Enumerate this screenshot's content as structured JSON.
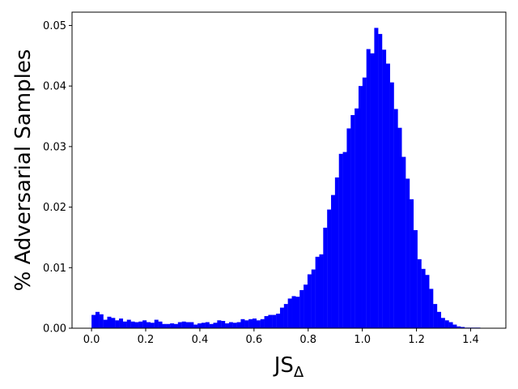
{
  "chart_data": {
    "type": "histogram",
    "xlabel": "JS",
    "xlabel_subscript": "Δ",
    "ylabel": "% Adversarial Samples",
    "xlim": [
      -0.072,
      1.53
    ],
    "ylim": [
      0,
      0.0522
    ],
    "xticks": [
      0.0,
      0.2,
      0.4,
      0.6,
      0.8,
      1.0,
      1.2,
      1.4
    ],
    "xtick_labels": [
      "0.0",
      "0.2",
      "0.4",
      "0.6",
      "0.8",
      "1.0",
      "1.2",
      "1.4"
    ],
    "yticks": [
      0.0,
      0.01,
      0.02,
      0.03,
      0.04,
      0.05
    ],
    "ytick_labels": [
      "0.00",
      "0.01",
      "0.02",
      "0.03",
      "0.04",
      "0.05"
    ],
    "bar_color": "#0000ff",
    "grid": false,
    "legend": null,
    "bin_start": 0.0,
    "bin_width": 0.0145,
    "values": [
      0.0022,
      0.0027,
      0.0023,
      0.0014,
      0.0019,
      0.0017,
      0.0013,
      0.0016,
      0.0011,
      0.0014,
      0.0011,
      0.001,
      0.0011,
      0.0013,
      0.001,
      0.0009,
      0.0014,
      0.0011,
      0.0007,
      0.0007,
      0.0008,
      0.0007,
      0.001,
      0.0011,
      0.001,
      0.001,
      0.0006,
      0.0008,
      0.0009,
      0.001,
      0.0007,
      0.0009,
      0.0013,
      0.0012,
      0.0008,
      0.001,
      0.0009,
      0.001,
      0.0015,
      0.0013,
      0.0015,
      0.0016,
      0.0013,
      0.0015,
      0.002,
      0.0022,
      0.0022,
      0.0024,
      0.0034,
      0.004,
      0.0049,
      0.0053,
      0.0052,
      0.0063,
      0.0072,
      0.0089,
      0.0097,
      0.0118,
      0.0122,
      0.0166,
      0.0196,
      0.022,
      0.0249,
      0.0288,
      0.0291,
      0.033,
      0.0352,
      0.0363,
      0.04,
      0.0414,
      0.0461,
      0.0454,
      0.0496,
      0.0486,
      0.046,
      0.0437,
      0.0406,
      0.0362,
      0.0331,
      0.0283,
      0.0247,
      0.0213,
      0.0162,
      0.0114,
      0.0098,
      0.0088,
      0.0065,
      0.004,
      0.0027,
      0.0017,
      0.0013,
      0.001,
      0.0006,
      0.0003,
      0.0002,
      0.0001,
      0.0001,
      0.0001,
      0.0001
    ]
  }
}
